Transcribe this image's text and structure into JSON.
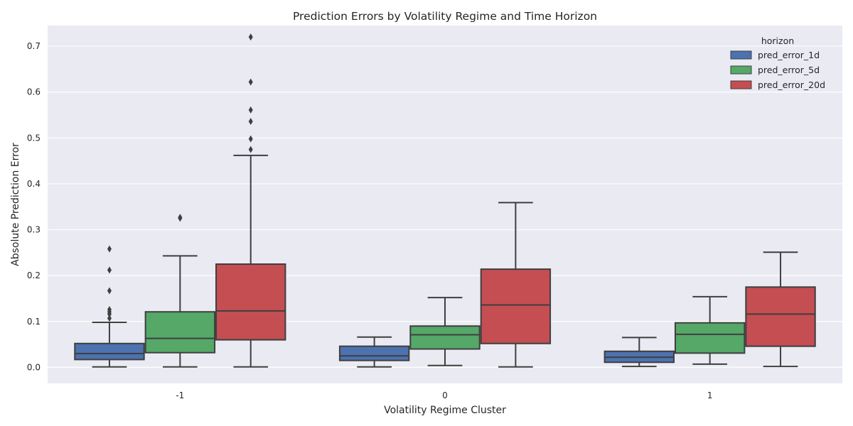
{
  "chart_data": {
    "type": "box",
    "title": "Prediction Errors by Volatility Regime and Time Horizon",
    "xlabel": "Volatility Regime Cluster",
    "ylabel": "Absolute Prediction Error",
    "categories": [
      "-1",
      "0",
      "1"
    ],
    "ylim": [
      -0.035,
      0.745
    ],
    "yticks": [
      0.0,
      0.1,
      0.2,
      0.3,
      0.4,
      0.5,
      0.6,
      0.7
    ],
    "ytick_labels": [
      "0.0",
      "0.1",
      "0.2",
      "0.3",
      "0.4",
      "0.5",
      "0.6",
      "0.7"
    ],
    "grid": true,
    "legend": {
      "title": "horizon",
      "position": "top-right"
    },
    "series": [
      {
        "name": "pred_error_1d",
        "color": "#4c72b0",
        "boxes": [
          {
            "category": "-1",
            "whisker_low": 0.001,
            "q1": 0.017,
            "median": 0.03,
            "q3": 0.052,
            "whisker_high": 0.098,
            "outliers": [
              0.258,
              0.212,
              0.167,
              0.126,
              0.121,
              0.116,
              0.107
            ]
          },
          {
            "category": "0",
            "whisker_low": 0.001,
            "q1": 0.015,
            "median": 0.025,
            "q3": 0.046,
            "whisker_high": 0.066,
            "outliers": []
          },
          {
            "category": "1",
            "whisker_low": 0.002,
            "q1": 0.011,
            "median": 0.022,
            "q3": 0.035,
            "whisker_high": 0.065,
            "outliers": []
          }
        ]
      },
      {
        "name": "pred_error_5d",
        "color": "#55a868",
        "boxes": [
          {
            "category": "-1",
            "whisker_low": 0.001,
            "q1": 0.032,
            "median": 0.063,
            "q3": 0.121,
            "whisker_high": 0.243,
            "outliers": [
              0.327,
              0.325
            ]
          },
          {
            "category": "0",
            "whisker_low": 0.004,
            "q1": 0.04,
            "median": 0.071,
            "q3": 0.09,
            "whisker_high": 0.152,
            "outliers": []
          },
          {
            "category": "1",
            "whisker_low": 0.007,
            "q1": 0.031,
            "median": 0.072,
            "q3": 0.097,
            "whisker_high": 0.154,
            "outliers": []
          }
        ]
      },
      {
        "name": "pred_error_20d",
        "color": "#c44e52",
        "boxes": [
          {
            "category": "-1",
            "whisker_low": 0.001,
            "q1": 0.06,
            "median": 0.123,
            "q3": 0.225,
            "whisker_high": 0.462,
            "outliers": [
              0.72,
              0.622,
              0.561,
              0.536,
              0.498,
              0.475
            ]
          },
          {
            "category": "0",
            "whisker_low": 0.001,
            "q1": 0.052,
            "median": 0.136,
            "q3": 0.214,
            "whisker_high": 0.359,
            "outliers": []
          },
          {
            "category": "1",
            "whisker_low": 0.002,
            "q1": 0.046,
            "median": 0.116,
            "q3": 0.175,
            "whisker_high": 0.251,
            "outliers": []
          }
        ]
      }
    ]
  }
}
